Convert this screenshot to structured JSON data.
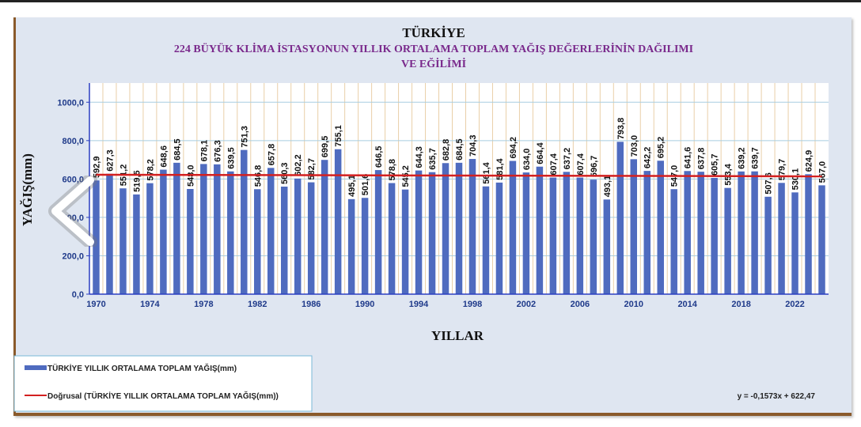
{
  "chart_data": {
    "type": "bar",
    "title": "TÜRKİYE",
    "subtitle_lines": [
      "224 BÜYÜK KLİMA İSTASYONUN YILLIK  ORTALAMA TOPLAM  YAĞIŞ DEĞERLERİNİN DAĞILIMI",
      "VE EĞİLİMİ"
    ],
    "xlabel": "YILLAR",
    "ylabel": "YAĞIŞ(mm)",
    "ylim": [
      0,
      1100
    ],
    "yticks": [
      "0,0",
      "200,0",
      "400,0",
      "600,0",
      "800,0",
      "1000,0"
    ],
    "ytick_values": [
      0,
      200,
      400,
      600,
      800,
      1000
    ],
    "xtick_labels": [
      "1970",
      "1974",
      "1978",
      "1982",
      "1986",
      "1990",
      "1994",
      "1998",
      "2002",
      "2006",
      "2010",
      "2014",
      "2018",
      "2022"
    ],
    "categories": [
      1970,
      1971,
      1972,
      1973,
      1974,
      1975,
      1976,
      1977,
      1978,
      1979,
      1980,
      1981,
      1982,
      1983,
      1984,
      1985,
      1986,
      1987,
      1988,
      1989,
      1990,
      1991,
      1992,
      1993,
      1994,
      1995,
      1996,
      1997,
      1998,
      1999,
      2000,
      2001,
      2002,
      2003,
      2004,
      2005,
      2006,
      2007,
      2008,
      2009,
      2010,
      2011,
      2012,
      2013,
      2014,
      2015,
      2016,
      2017,
      2018,
      2019,
      2020,
      2021,
      2022,
      2023,
      2024
    ],
    "values": [
      592.9,
      627.3,
      551.2,
      519.5,
      578.2,
      648.6,
      684.5,
      548.0,
      678.1,
      676.3,
      639.5,
      751.3,
      546.8,
      657.8,
      560.3,
      602.2,
      582.7,
      699.5,
      755.1,
      495.1,
      501.6,
      646.5,
      578.8,
      545.2,
      644.3,
      635.7,
      682.8,
      684.5,
      704.3,
      561.4,
      581.4,
      694.2,
      634.0,
      664.4,
      607.4,
      637.2,
      607.4,
      596.7,
      493.1,
      793.8,
      703.0,
      642.2,
      695.2,
      547.0,
      641.6,
      637.8,
      605.7,
      553.4,
      639.2,
      639.7,
      507.6,
      579.7,
      530.1,
      624.9,
      567.0
    ],
    "data_labels": [
      "592,9",
      "627,3",
      "551,2",
      "519,5",
      "578,2",
      "648,6",
      "684,5",
      "548,0",
      "678,1",
      "676,3",
      "639,5",
      "751,3",
      "546,8",
      "657,8",
      "560,3",
      "602,2",
      "582,7",
      "699,5",
      "755,1",
      "495,1",
      "501,6",
      "646,5",
      "578,8",
      "545,2",
      "644,3",
      "635,7",
      "682,8",
      "684,5",
      "704,3",
      "561,4",
      "581,4",
      "694,2",
      "634,0",
      "664,4",
      "607,4",
      "637,2",
      "607,4",
      "596,7",
      "493,1",
      "793,8",
      "703,0",
      "642,2",
      "695,2",
      "547,0",
      "641,6",
      "637,8",
      "605,7",
      "553,4",
      "639,2",
      "639,7",
      "507,6",
      "579,7",
      "530,1",
      "624,9",
      "567,0"
    ],
    "trendline": {
      "type": "linear",
      "slope": -0.1573,
      "intercept": 622.47,
      "equation": "y = -0,1573x + 622,47"
    },
    "legend": [
      "TÜRKİYE YILLIK ORTALAMA  TOPLAM YAĞIŞ(mm)",
      "Doğrusal (TÜRKİYE YILLIK ORTALAMA TOPLAM YAĞIŞ(mm))"
    ],
    "legend_placement": "bottom-left",
    "colors": {
      "bar": "#4f6bbf",
      "trend": "#d32020",
      "grid_v": "#e9cfa8",
      "grid_h": "#a8cde0",
      "axis": "#2b3fc2"
    }
  }
}
